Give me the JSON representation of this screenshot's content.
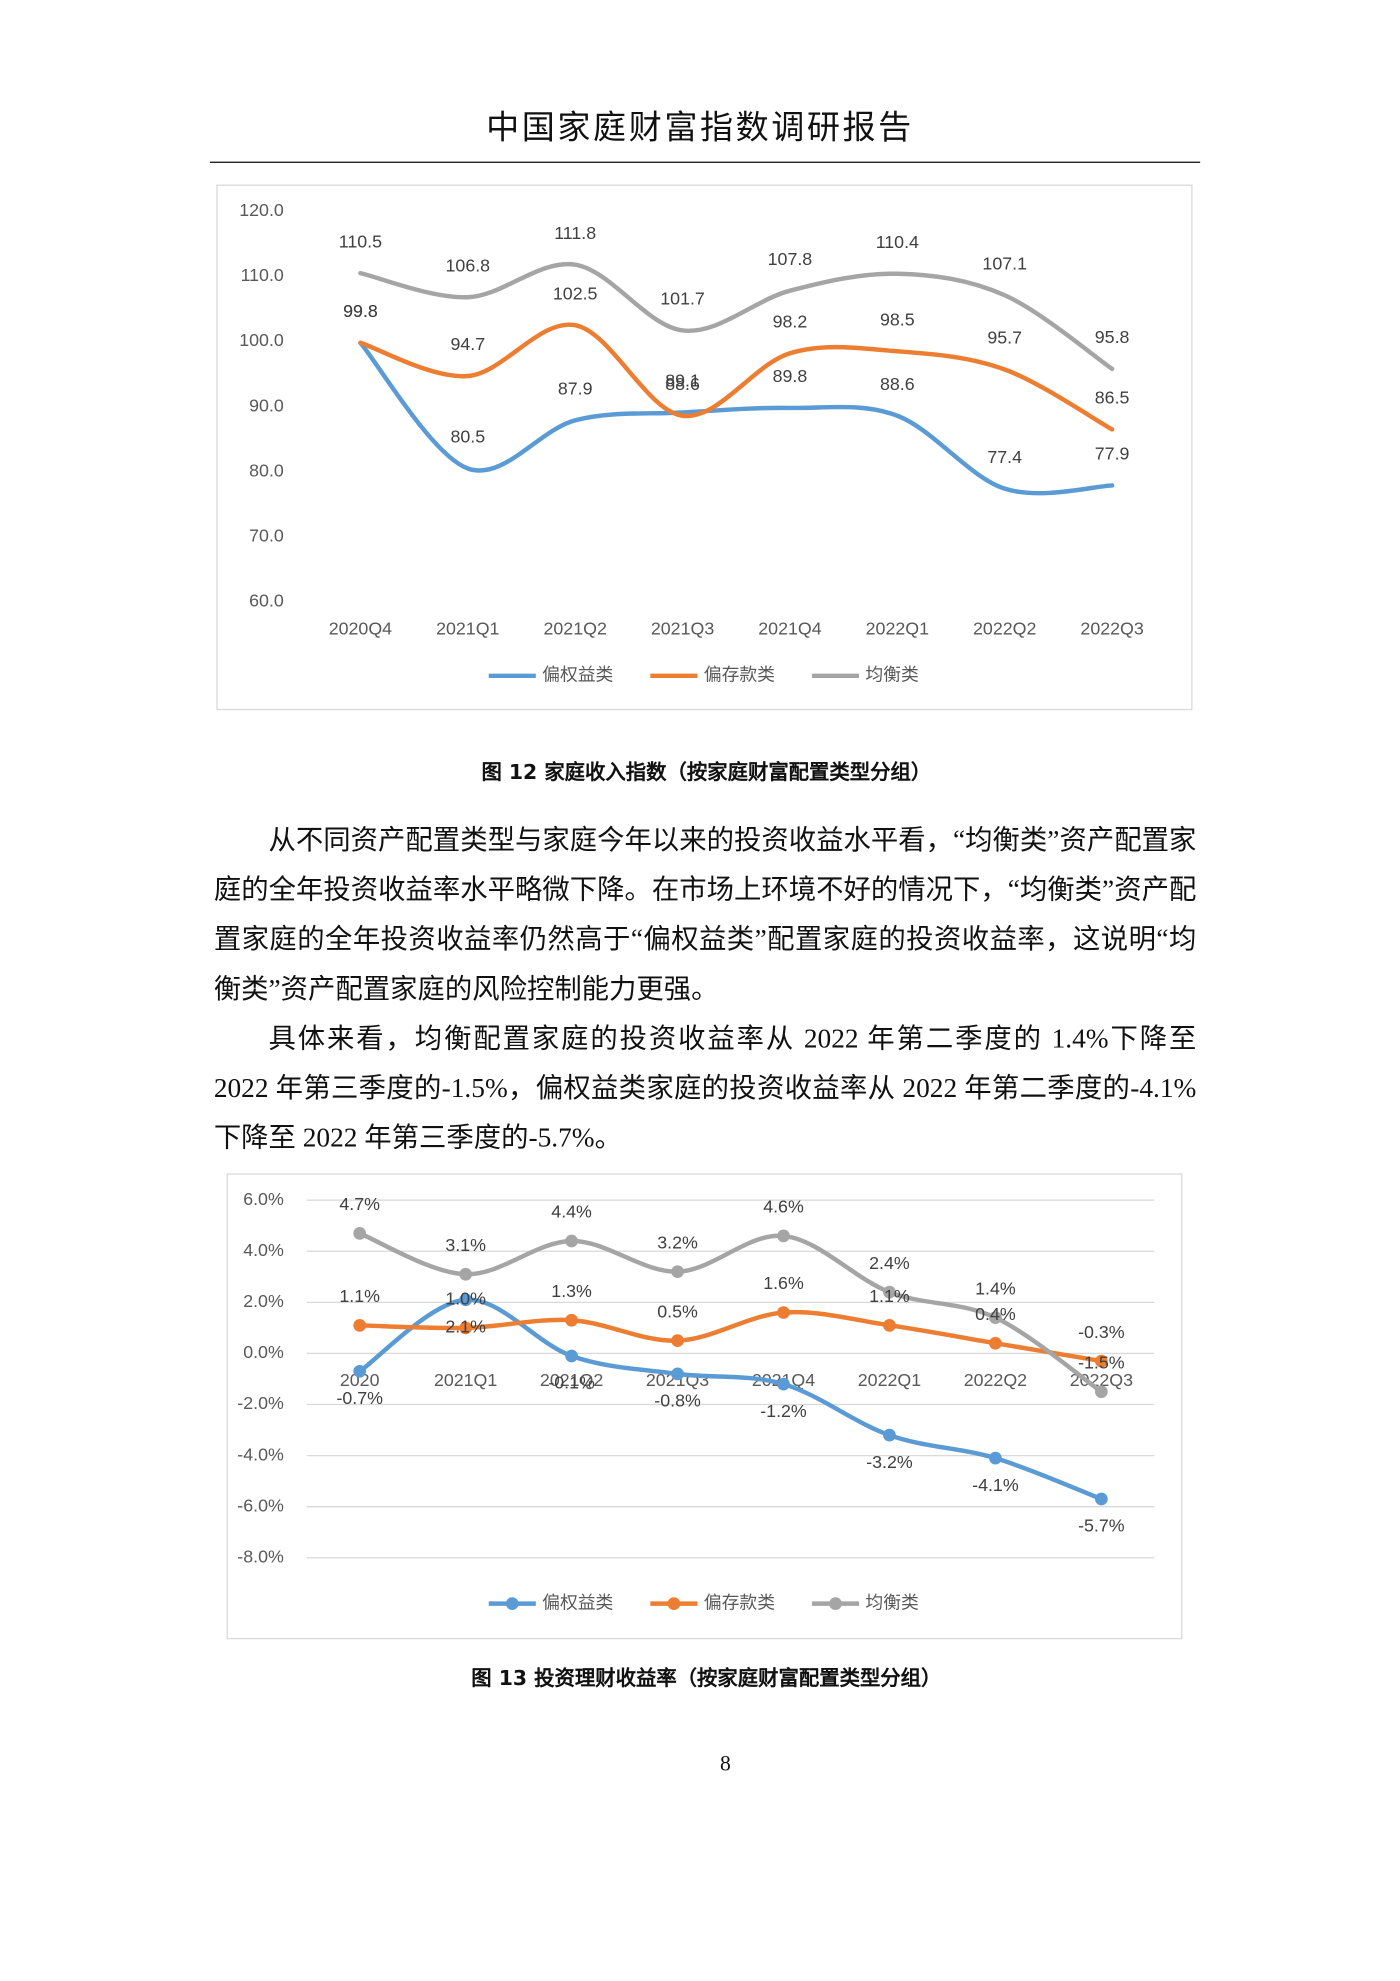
{
  "header": {
    "title": "中国家庭财富指数调研报告"
  },
  "chart_data": [
    {
      "type": "line",
      "caption": "图 12 家庭收入指数（按家庭财富配置类型分组）",
      "categories": [
        "2020Q4",
        "2021Q1",
        "2021Q2",
        "2021Q3",
        "2021Q4",
        "2022Q1",
        "2022Q2",
        "2022Q3"
      ],
      "series": [
        {
          "name": "偏权益类",
          "color": "#5b9bd5",
          "values": [
            99.8,
            80.5,
            87.9,
            89.1,
            89.8,
            88.6,
            77.4,
            77.9
          ]
        },
        {
          "name": "偏存款类",
          "color": "#ed7d31",
          "values": [
            99.8,
            94.7,
            102.5,
            88.6,
            98.2,
            98.5,
            95.7,
            86.5
          ]
        },
        {
          "name": "均衡类",
          "color": "#a5a5a5",
          "values": [
            110.5,
            106.8,
            111.8,
            101.7,
            107.8,
            110.4,
            107.1,
            95.8
          ]
        }
      ],
      "ylim": [
        60,
        120
      ],
      "yticks": [
        {
          "value": 60,
          "label": "60.0"
        },
        {
          "value": 70,
          "label": "70.0"
        },
        {
          "value": 80,
          "label": "80.0"
        },
        {
          "value": 90,
          "label": "90.0"
        },
        {
          "value": 100,
          "label": "100.0"
        },
        {
          "value": 110,
          "label": "110.0"
        },
        {
          "value": 120,
          "label": "120.0"
        }
      ],
      "grid": false,
      "smooth": true,
      "markers": false,
      "legend": "bottom"
    },
    {
      "type": "line",
      "caption": "图 13 投资理财收益率（按家庭财富配置类型分组）",
      "categories": [
        "2020",
        "2021Q1",
        "2021Q2",
        "2021Q3",
        "2021Q4",
        "2022Q1",
        "2022Q2",
        "2022Q3"
      ],
      "series": [
        {
          "name": "偏权益类",
          "color": "#5b9bd5",
          "values": [
            -0.7,
            2.1,
            -0.1,
            -0.8,
            -1.2,
            -3.2,
            -4.1,
            -5.7
          ],
          "value_labels": [
            "-0.7%",
            "2.1%",
            "-0.1%",
            "-0.8%",
            "-1.2%",
            "-3.2%",
            "-4.1%",
            "-5.7%"
          ]
        },
        {
          "name": "偏存款类",
          "color": "#ed7d31",
          "values": [
            1.1,
            1.0,
            1.3,
            0.5,
            1.6,
            1.1,
            0.4,
            -0.3
          ],
          "value_labels": [
            "1.1%",
            "1.0%",
            "1.3%",
            "0.5%",
            "1.6%",
            "1.1%",
            "0.4%",
            "-0.3%"
          ]
        },
        {
          "name": "均衡类",
          "color": "#a5a5a5",
          "values": [
            4.7,
            3.1,
            4.4,
            3.2,
            4.6,
            2.4,
            1.4,
            -1.5
          ],
          "value_labels": [
            "4.7%",
            "3.1%",
            "4.4%",
            "3.2%",
            "4.6%",
            "2.4%",
            "1.4%",
            "-1.5%"
          ]
        }
      ],
      "ylim": [
        -8,
        6
      ],
      "yticks": [
        {
          "value": -8,
          "label": "-8.0%"
        },
        {
          "value": -6,
          "label": "-6.0%"
        },
        {
          "value": -4,
          "label": "-4.0%"
        },
        {
          "value": -2,
          "label": "-2.0%"
        },
        {
          "value": 0,
          "label": "0.0%"
        },
        {
          "value": 2,
          "label": "2.0%"
        },
        {
          "value": 4,
          "label": "4.0%"
        },
        {
          "value": 6,
          "label": "6.0%"
        }
      ],
      "grid": true,
      "smooth": true,
      "markers": true,
      "legend": "bottom"
    }
  ],
  "body": {
    "paragraphs": [
      "从不同资产配置类型与家庭今年以来的投资收益水平看，“均衡类”资产配置家庭的全年投资收益率水平略微下降。在市场上环境不好的情况下，“均衡类”资产配置家庭的全年投资收益率仍然高于“偏权益类”配置家庭的投资收益率，这说明“均衡类”资产配置家庭的风险控制能力更强。",
      "具体来看，均衡配置家庭的投资收益率从 2022 年第二季度的 1.4%下降至 2022 年第三季度的-1.5%，偏权益类家庭的投资收益率从 2022 年第二季度的-4.1%下降至 2022 年第三季度的-5.7%。"
    ]
  },
  "page_number": "8"
}
